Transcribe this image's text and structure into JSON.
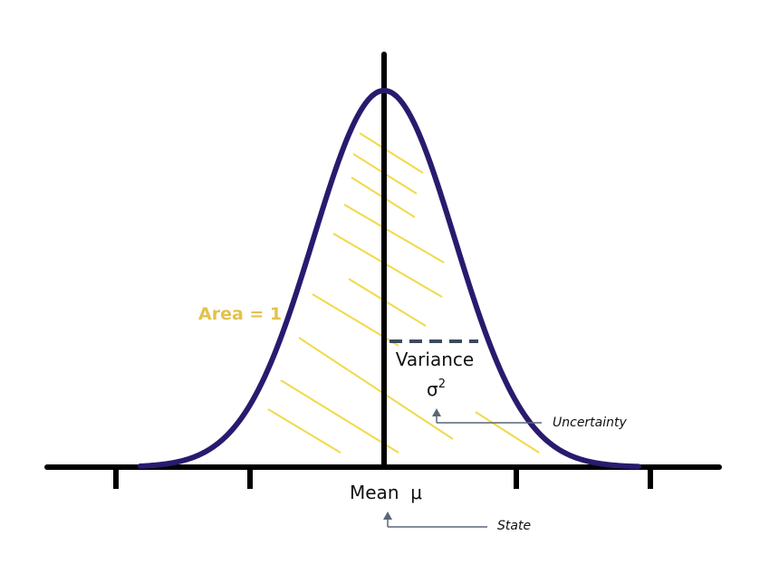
{
  "labels": {
    "area": "Area = 1",
    "variance": "Variance",
    "sigma": "σ",
    "sigma_exp": "2",
    "mean": "Mean  μ",
    "uncertainty": "Uncertainty",
    "state": "State"
  },
  "colors": {
    "curve": "#2a1a6e",
    "axis": "#000000",
    "hatch": "#f2d94a",
    "area_label": "#e3c24a",
    "dashed": "#3d4a5c",
    "pointer": "#5a6778",
    "text": "#111111"
  }
}
